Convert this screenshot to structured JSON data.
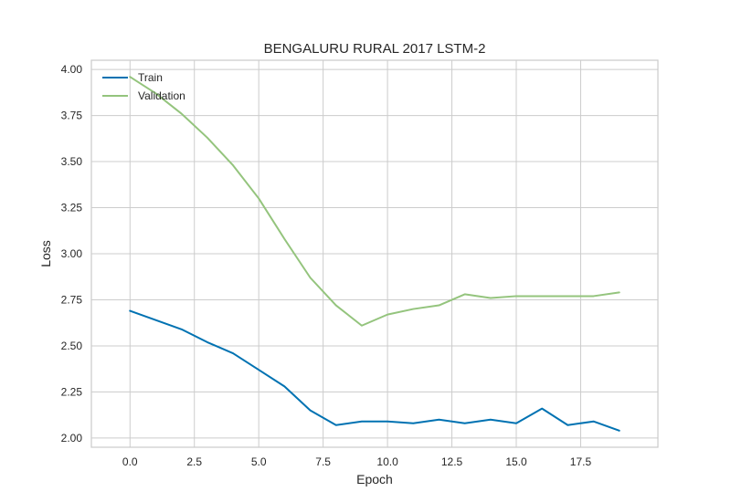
{
  "chart_data": {
    "type": "line",
    "title": "BENGALURU RURAL 2017 LSTM-2",
    "xlabel": "Epoch",
    "ylabel": "Loss",
    "xlim": [
      -1.5,
      20.5
    ],
    "ylim": [
      1.95,
      4.05
    ],
    "xticks": [
      "0.0",
      "2.5",
      "5.0",
      "7.5",
      "10.0",
      "12.5",
      "15.0",
      "17.5"
    ],
    "yticks": [
      "2.00",
      "2.25",
      "2.50",
      "2.75",
      "3.00",
      "3.25",
      "3.50",
      "3.75",
      "4.00"
    ],
    "grid": true,
    "legend_position": "top-left",
    "x": [
      0,
      1,
      2,
      3,
      4,
      5,
      6,
      7,
      8,
      9,
      10,
      11,
      12,
      13,
      14,
      15,
      16,
      17,
      18,
      19
    ],
    "series": [
      {
        "name": "Train",
        "color": "#0072b2",
        "values": [
          2.69,
          2.64,
          2.59,
          2.52,
          2.46,
          2.37,
          2.28,
          2.15,
          2.07,
          2.09,
          2.09,
          2.08,
          2.1,
          2.08,
          2.1,
          2.08,
          2.16,
          2.07,
          2.09,
          2.04
        ]
      },
      {
        "name": "Validation",
        "color": "#94c47d",
        "values": [
          3.96,
          3.87,
          3.76,
          3.63,
          3.48,
          3.3,
          3.08,
          2.87,
          2.72,
          2.61,
          2.67,
          2.7,
          2.72,
          2.78,
          2.76,
          2.77,
          2.77,
          2.77,
          2.77,
          2.79
        ]
      }
    ]
  }
}
